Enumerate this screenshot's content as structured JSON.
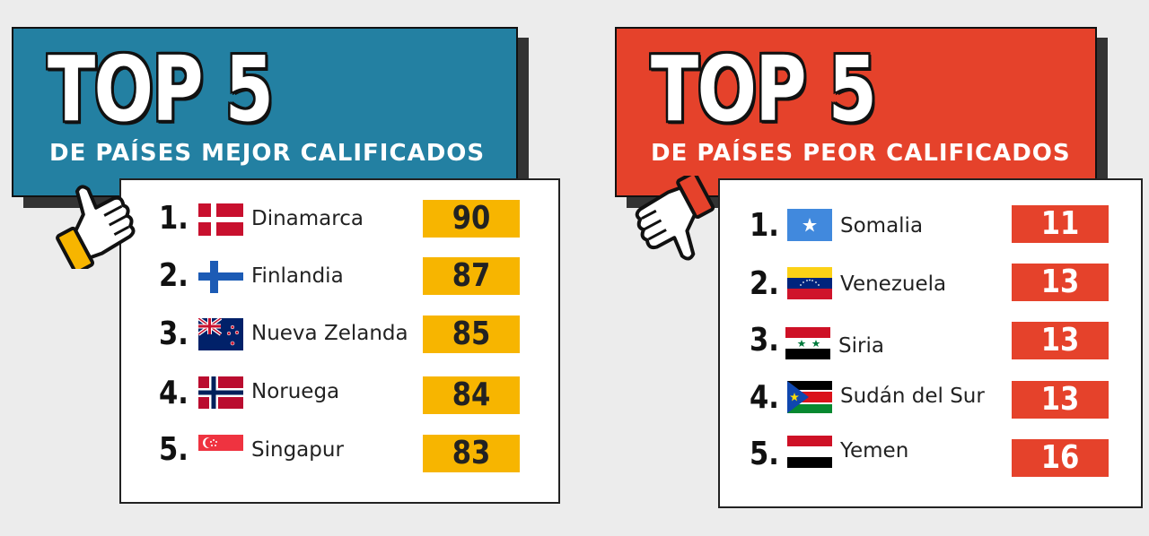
{
  "left": {
    "title": "TOP 5",
    "subtitle": "DE PAÍSES MEJOR CALIFICADOS",
    "items": [
      {
        "rank": "1.",
        "country": "Dinamarca",
        "score": "90",
        "flag": "denmark-flag"
      },
      {
        "rank": "2.",
        "country": "Finlandia",
        "score": "87",
        "flag": "finland-flag"
      },
      {
        "rank": "3.",
        "country": "Nueva Zelanda",
        "score": "85",
        "flag": "new-zealand-flag"
      },
      {
        "rank": "4.",
        "country": "Noruega",
        "score": "84",
        "flag": "norway-flag"
      },
      {
        "rank": "5.",
        "country": "Singapur",
        "score": "83",
        "flag": "singapore-flag"
      }
    ],
    "accent": "#2380a2",
    "score_color": "#f7b500",
    "icon": "thumbs-up-icon"
  },
  "right": {
    "title": "TOP 5",
    "subtitle": "DE PAÍSES PEOR CALIFICADOS",
    "items": [
      {
        "rank": "1.",
        "country": "Somalia",
        "score": "11",
        "flag": "somalia-flag"
      },
      {
        "rank": "2.",
        "country": "Venezuela",
        "score": "13",
        "flag": "venezuela-flag"
      },
      {
        "rank": "3.",
        "country": "Siria",
        "score": "13",
        "flag": "syria-flag"
      },
      {
        "rank": "4.",
        "country": "Sudán del Sur",
        "score": "13",
        "flag": "south-sudan-flag"
      },
      {
        "rank": "5.",
        "country": "Yemen",
        "score": "16",
        "flag": "yemen-flag"
      }
    ],
    "accent": "#e5422b",
    "score_color": "#e5422b",
    "icon": "thumbs-down-icon"
  }
}
